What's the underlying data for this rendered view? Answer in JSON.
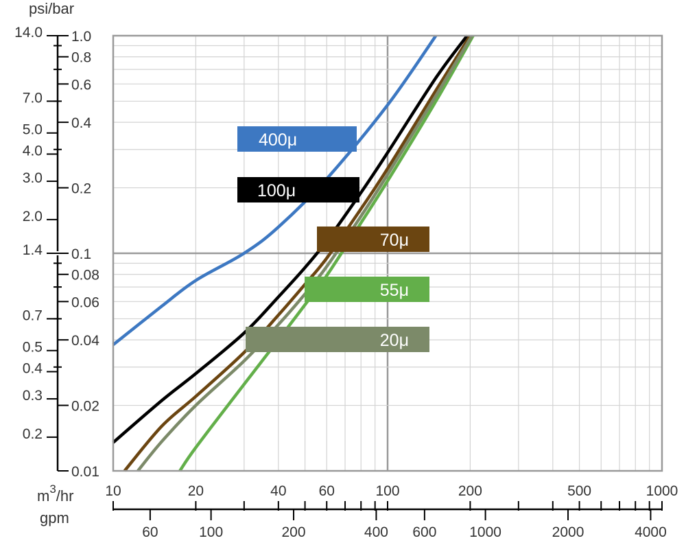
{
  "chart_data": {
    "type": "line",
    "xscale": "log",
    "yscale": "log",
    "x_unit": "m3/hr",
    "x_unit_base": "m",
    "x_unit_sup": "3",
    "x_unit_rest": "/hr",
    "x2_unit": "gpm",
    "y_unit": "psi/bar",
    "xlim": [
      10,
      1000
    ],
    "ylim": [
      0.01,
      1.0
    ],
    "x_ticks": [
      "10",
      "20",
      "40",
      "60",
      "100",
      "200",
      "500",
      "1000"
    ],
    "x_tick_values": [
      10,
      20,
      40,
      60,
      100,
      200,
      500,
      1000
    ],
    "gpm_ticks": [
      "60",
      "100",
      "200",
      "400",
      "600",
      "1000",
      "2000",
      "4000"
    ],
    "gpm_tick_values": [
      60,
      100,
      200,
      400,
      600,
      1000,
      2000,
      4000
    ],
    "bar_ticks": [
      "1.0",
      "0.8",
      "0.6",
      "0.4",
      "0.2",
      "0.1",
      "0.08",
      "0.06",
      "0.04",
      "0.02",
      "0.01"
    ],
    "bar_tick_values": [
      1.0,
      0.8,
      0.6,
      0.4,
      0.2,
      0.1,
      0.08,
      0.06,
      0.04,
      0.02,
      0.01
    ],
    "psi_ticks": [
      "14.0",
      "7.0",
      "5.0",
      "4.0",
      "3.0",
      "2.0",
      "1.4",
      "0.7",
      "0.5",
      "0.4",
      "0.3",
      "0.2"
    ],
    "psi_tick_values": [
      14.0,
      7.0,
      5.0,
      4.0,
      3.0,
      2.0,
      1.4,
      0.7,
      0.5,
      0.4,
      0.3,
      0.2
    ],
    "grid": true,
    "series": [
      {
        "name": "400μ",
        "color": "#3d78c2",
        "x": [
          10,
          15,
          20,
          30,
          40,
          60,
          100,
          150
        ],
        "y": [
          0.038,
          0.057,
          0.075,
          0.1,
          0.132,
          0.22,
          0.48,
          1.0
        ]
      },
      {
        "name": "100μ",
        "color": "#000000",
        "x": [
          10,
          15,
          20,
          30,
          40,
          50,
          60,
          80,
          100,
          150,
          195
        ],
        "y": [
          0.0135,
          0.021,
          0.028,
          0.043,
          0.063,
          0.086,
          0.114,
          0.19,
          0.29,
          0.64,
          1.0
        ]
      },
      {
        "name": "70μ",
        "color": "#6b4511",
        "x": [
          11,
          15,
          20,
          30,
          40,
          50,
          60,
          80,
          100,
          150,
          200
        ],
        "y": [
          0.01,
          0.016,
          0.022,
          0.035,
          0.052,
          0.072,
          0.095,
          0.16,
          0.245,
          0.56,
          1.0
        ]
      },
      {
        "name": "55μ",
        "color": "#63af4a",
        "x": [
          17.5,
          20,
          30,
          40,
          50,
          60,
          80,
          100,
          150,
          205
        ],
        "y": [
          0.01,
          0.0128,
          0.025,
          0.04,
          0.058,
          0.079,
          0.138,
          0.215,
          0.5,
          1.0
        ]
      },
      {
        "name": "20μ",
        "color": "#7c8a69",
        "x": [
          12.3,
          15,
          20,
          30,
          40,
          50,
          60,
          80,
          100,
          150,
          203
        ],
        "y": [
          0.01,
          0.0136,
          0.02,
          0.032,
          0.047,
          0.065,
          0.087,
          0.148,
          0.23,
          0.53,
          1.0
        ]
      }
    ],
    "legend_label_colors": [
      "#ffffff"
    ]
  }
}
